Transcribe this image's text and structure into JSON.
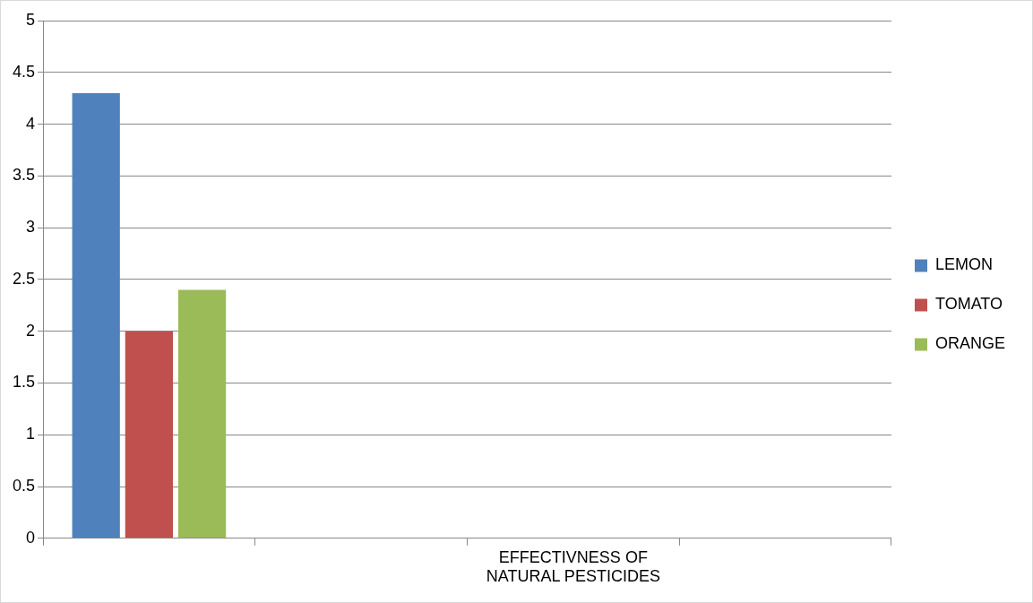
{
  "chart_data": {
    "type": "bar",
    "categories": [
      null,
      null,
      "EFFECTIVNESS OF NATURAL PESTICIDES",
      null
    ],
    "series": [
      {
        "name": "LEMON",
        "color": "#4f81bd",
        "values": [
          4.3,
          null,
          null,
          null
        ]
      },
      {
        "name": "TOMATO",
        "color": "#c0504d",
        "values": [
          2,
          null,
          null,
          null
        ]
      },
      {
        "name": "ORANGE",
        "color": "#9bbb59",
        "values": [
          2.4,
          null,
          null,
          null
        ]
      }
    ],
    "ylim": [
      0,
      5
    ],
    "yticks": [
      0,
      0.5,
      1,
      1.5,
      2,
      2.5,
      3,
      3.5,
      4,
      4.5,
      5
    ],
    "grid": "y",
    "legend": "right"
  }
}
